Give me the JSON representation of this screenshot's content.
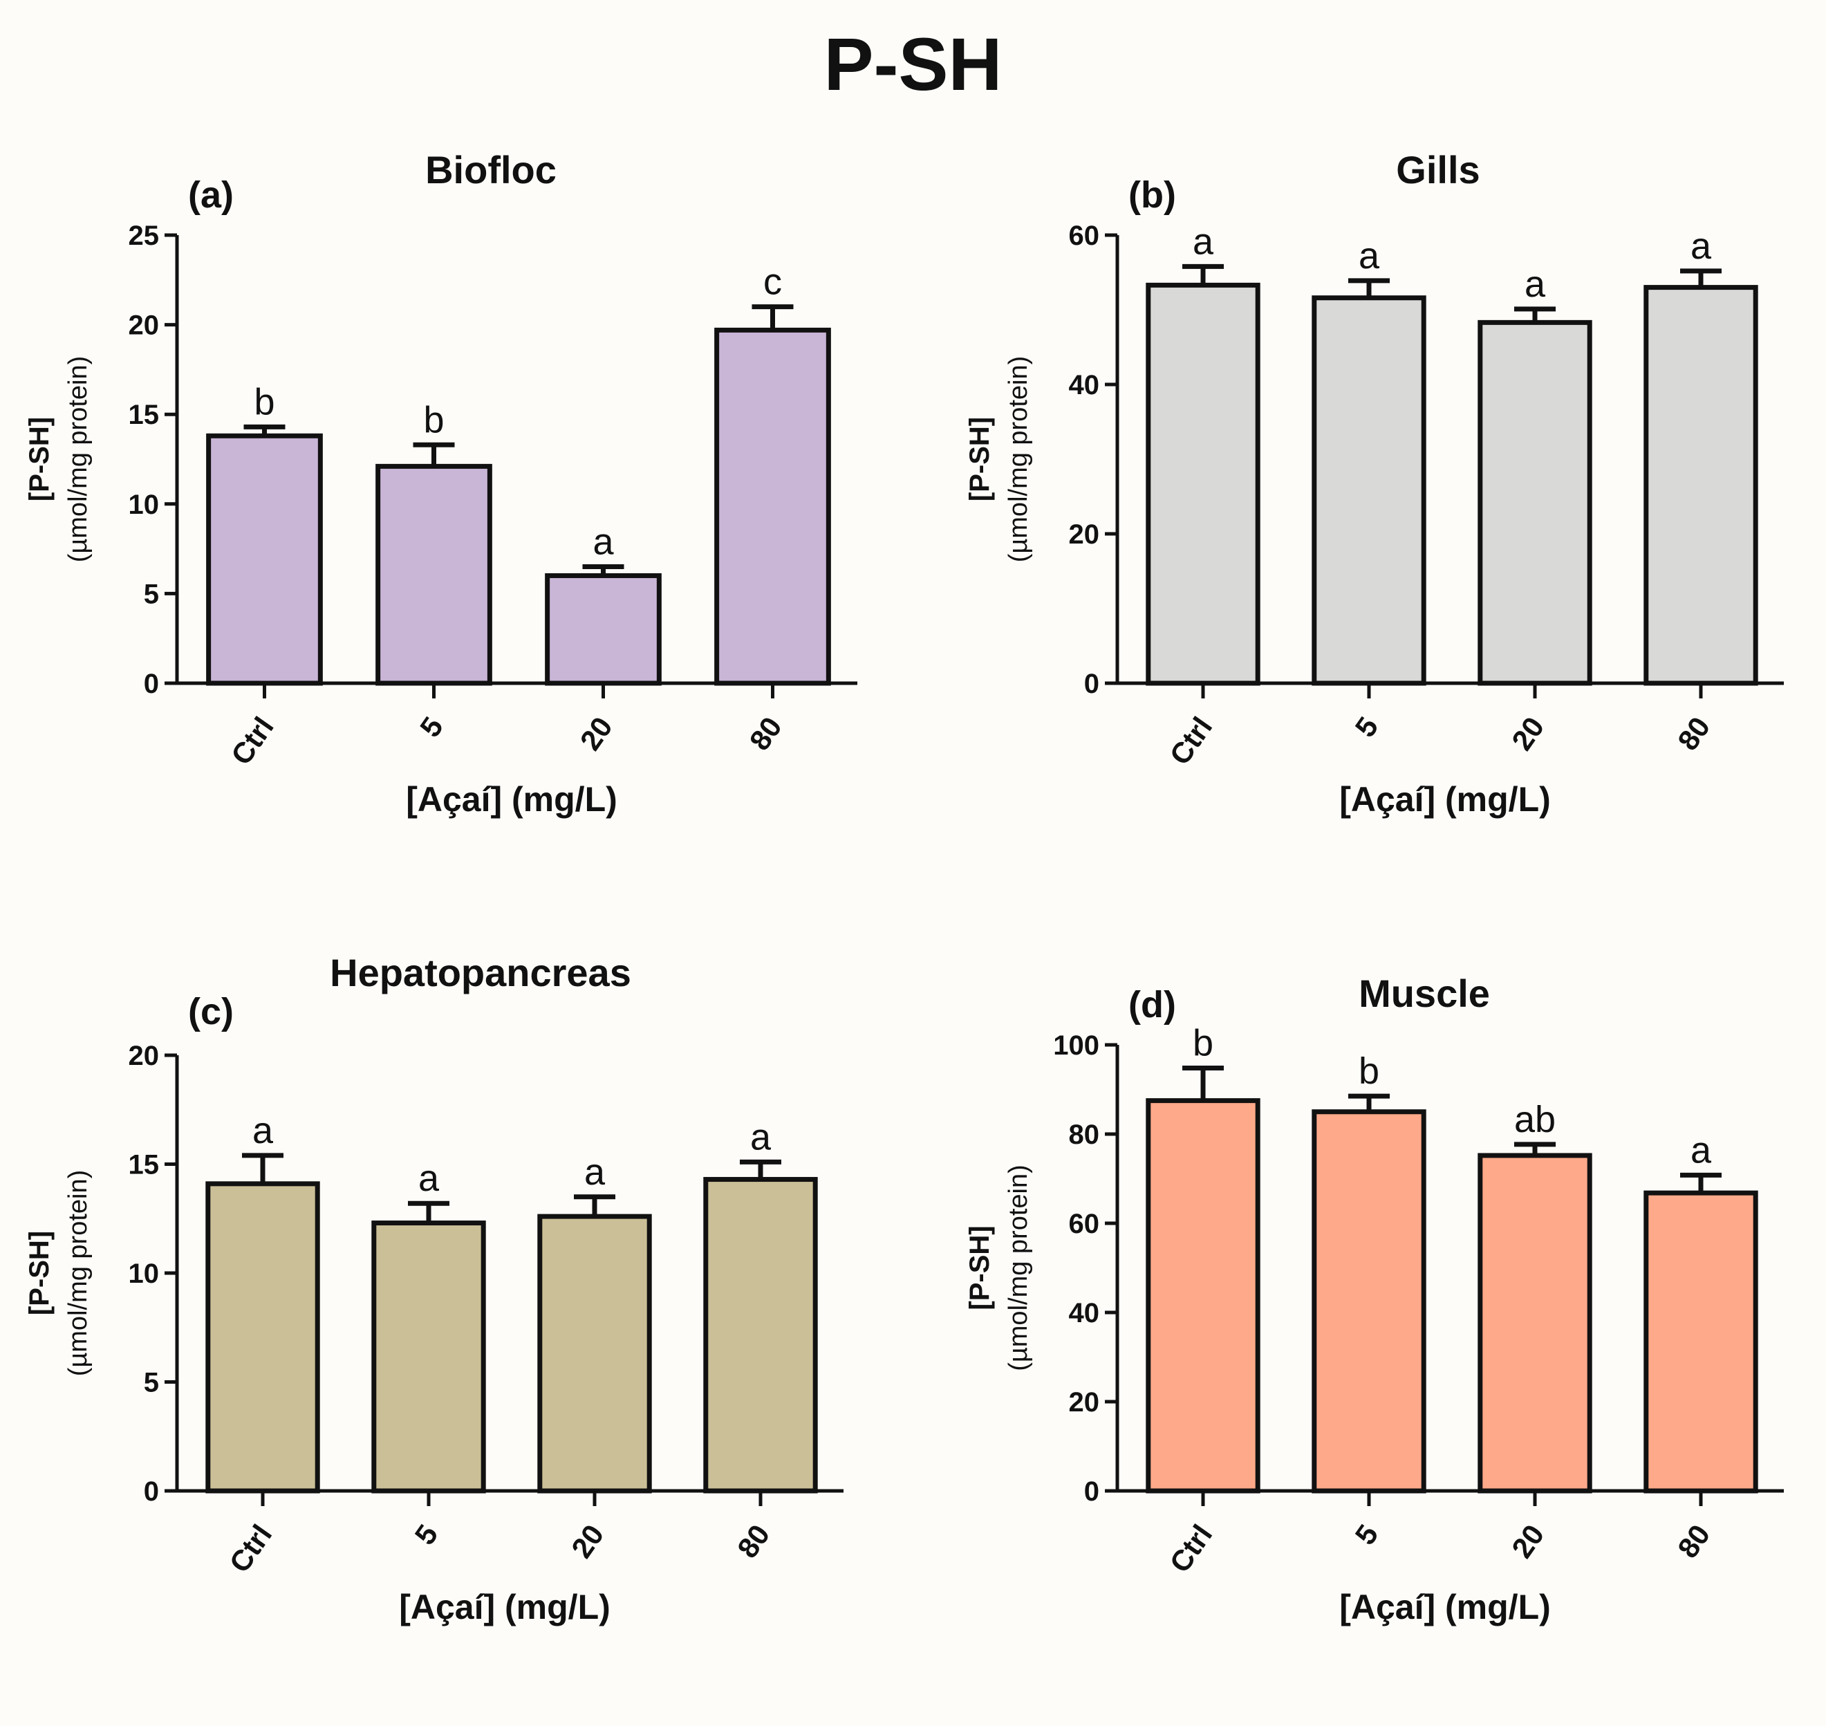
{
  "page": {
    "title": "P-SH"
  },
  "colors": {
    "panel_a_fill": "#c9b5d6",
    "panel_b_fill": "#d9d9d7",
    "panel_c_fill": "#cbbf97",
    "panel_d_fill": "#fda98a",
    "stroke": "#111111"
  },
  "chart_data": [
    {
      "type": "bar",
      "panel_letter": "(a)",
      "title": "Biofloc",
      "ylabel_main": "[P-SH]",
      "ylabel_sub": "(µmol/mg protein)",
      "xlabel": "[Açaí] (mg/L)",
      "categories": [
        "Ctrl",
        "5",
        "20",
        "80"
      ],
      "values": [
        13.8,
        12.1,
        6.0,
        19.7
      ],
      "errors": [
        0.5,
        1.2,
        0.5,
        1.3
      ],
      "letters": [
        "b",
        "b",
        "a",
        "c"
      ],
      "ylim": [
        0,
        25
      ],
      "yticks": [
        0,
        5,
        10,
        15,
        20,
        25
      ],
      "ytick_labels": [
        "0",
        "5",
        "10",
        "15",
        "20",
        "25"
      ],
      "fill": "#c9b5d6"
    },
    {
      "type": "bar",
      "panel_letter": "(b)",
      "title": "Gills",
      "ylabel_main": "[P-SH]",
      "ylabel_sub": "(µmol/mg protein)",
      "xlabel": "[Açaí] (mg/L)",
      "categories": [
        "Ctrl",
        "5",
        "20",
        "80"
      ],
      "values": [
        53.3,
        51.6,
        48.3,
        53.0
      ],
      "errors": [
        2.5,
        2.3,
        1.8,
        2.2
      ],
      "letters": [
        "a",
        "a",
        "a",
        "a"
      ],
      "ylim": [
        0,
        60
      ],
      "yticks": [
        0,
        20,
        40,
        60
      ],
      "ytick_labels": [
        "0",
        "20",
        "40",
        "60"
      ],
      "fill": "#d9d9d7"
    },
    {
      "type": "bar",
      "panel_letter": "(c)",
      "title": "Hepatopancreas",
      "ylabel_main": "[P-SH]",
      "ylabel_sub": "(µmol/mg protein)",
      "xlabel": "[Açaí] (mg/L)",
      "categories": [
        "Ctrl",
        "5",
        "20",
        "80"
      ],
      "values": [
        14.1,
        12.3,
        12.6,
        14.3
      ],
      "errors": [
        1.3,
        0.9,
        0.9,
        0.8
      ],
      "letters": [
        "a",
        "a",
        "a",
        "a"
      ],
      "ylim": [
        0,
        20
      ],
      "yticks": [
        0,
        5,
        10,
        15,
        20
      ],
      "ytick_labels": [
        "0",
        "5",
        "10",
        "15",
        "20"
      ],
      "fill": "#cbbf97"
    },
    {
      "type": "bar",
      "panel_letter": "(d)",
      "title": "Muscle",
      "ylabel_main": "[P-SH]",
      "ylabel_sub": "(µmol/mg protein)",
      "xlabel": "[Açaí] (mg/L)",
      "categories": [
        "Ctrl",
        "5",
        "20",
        "80"
      ],
      "values": [
        87.5,
        85.0,
        75.2,
        66.8
      ],
      "errors": [
        7.3,
        3.5,
        2.5,
        4.0
      ],
      "letters": [
        "b",
        "b",
        "ab",
        "a"
      ],
      "ylim": [
        0,
        100
      ],
      "yticks": [
        0,
        20,
        40,
        60,
        80,
        100
      ],
      "ytick_labels": [
        "0",
        "20",
        "40",
        "60",
        "80",
        "100"
      ],
      "fill": "#fda98a"
    }
  ]
}
